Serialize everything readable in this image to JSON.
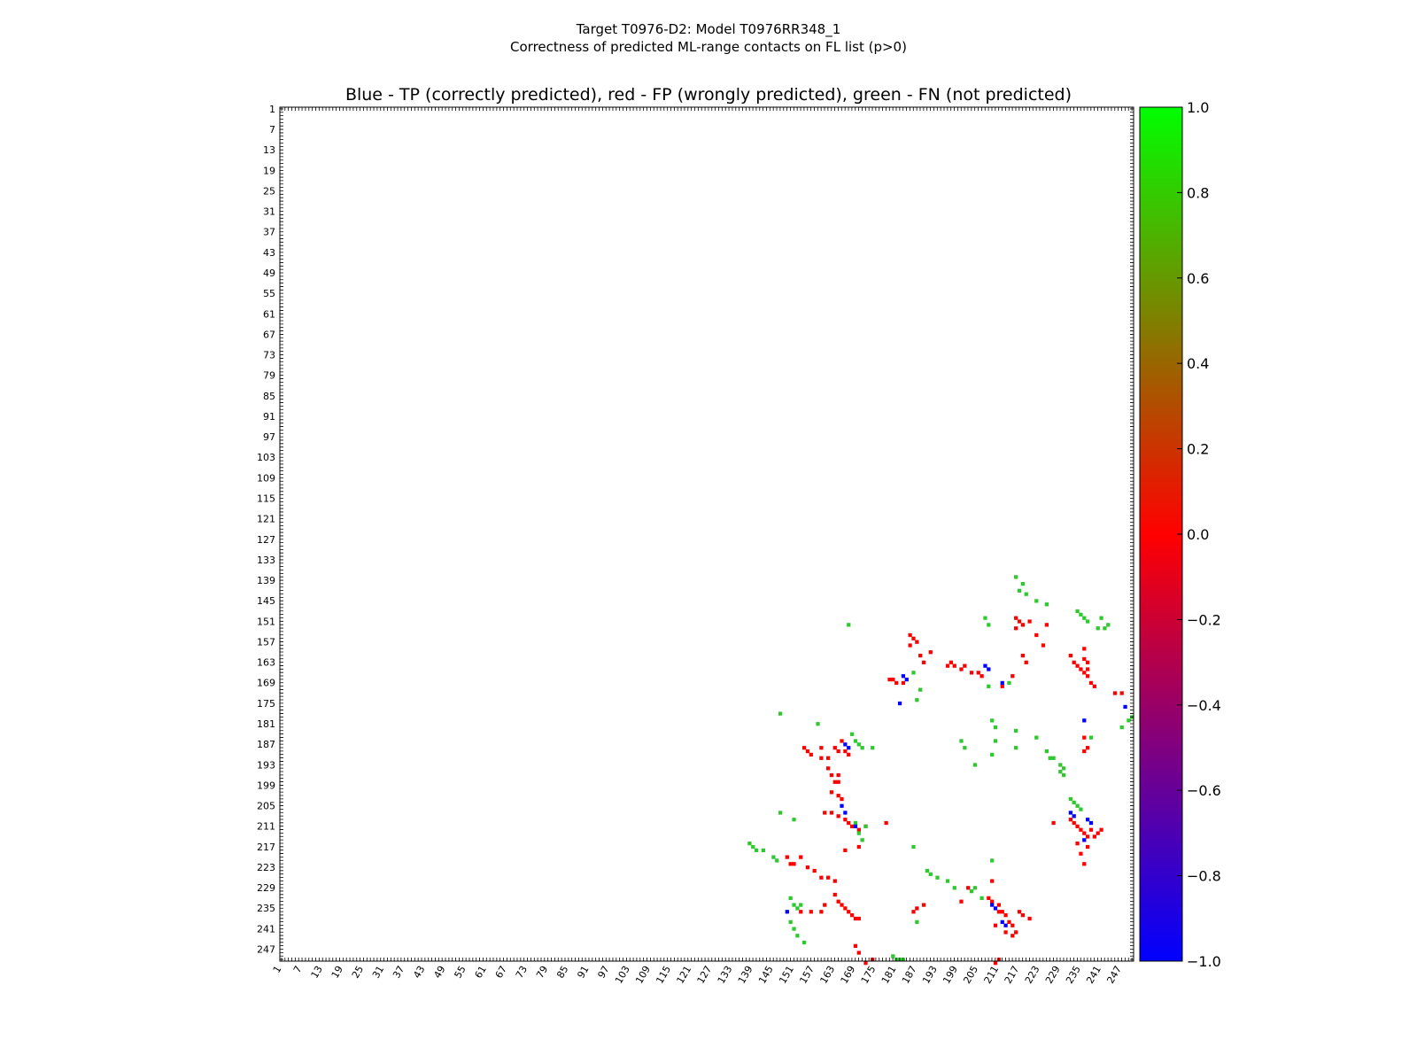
{
  "title_line1": "Target T0976-D2: Model T0976RR348_1",
  "title_line2": "Correctness of predicted ML-range contacts on FL list (p>0)",
  "plot_title": "Blue - TP (correctly predicted), red - FP (wrongly predicted), green - FN (not predicted)",
  "chart_data": {
    "type": "heatmap",
    "matrix_size": 250,
    "xlim": [
      1,
      250
    ],
    "ylim": [
      1,
      250
    ],
    "x_ticks": [
      "1",
      "7",
      "13",
      "19",
      "25",
      "31",
      "37",
      "43",
      "49",
      "55",
      "61",
      "67",
      "73",
      "79",
      "85",
      "91",
      "97",
      "103",
      "109",
      "115",
      "121",
      "127",
      "133",
      "139",
      "145",
      "151",
      "157",
      "163",
      "169",
      "175",
      "181",
      "187",
      "193",
      "199",
      "205",
      "211",
      "217",
      "223",
      "229",
      "235",
      "241",
      "247"
    ],
    "y_ticks": [
      "1",
      "7",
      "13",
      "19",
      "25",
      "31",
      "37",
      "43",
      "49",
      "55",
      "61",
      "67",
      "73",
      "79",
      "85",
      "91",
      "97",
      "103",
      "109",
      "115",
      "121",
      "127",
      "133",
      "139",
      "145",
      "151",
      "157",
      "163",
      "169",
      "175",
      "181",
      "187",
      "193",
      "199",
      "205",
      "211",
      "217",
      "223",
      "229",
      "235",
      "241",
      "247"
    ],
    "colorbar": {
      "min": -1.0,
      "max": 1.0,
      "ticks": [
        "1.0",
        "0.8",
        "0.6",
        "0.4",
        "0.2",
        "0.0",
        "−0.2",
        "−0.4",
        "−0.6",
        "−0.8",
        "−1.0"
      ],
      "colors": [
        "#0000ff",
        "#ff0000",
        "#00ff00"
      ]
    },
    "categories": [
      {
        "label": "TP",
        "value": -1,
        "color": "#0000ff"
      },
      {
        "label": "FP",
        "value": 0,
        "color": "#ff0000"
      },
      {
        "label": "FN",
        "value": 1,
        "color": "#2ec92e"
      }
    ],
    "fp_cells": [
      [
        216,
        150
      ],
      [
        217,
        151
      ],
      [
        218,
        152
      ],
      [
        220,
        151
      ],
      [
        216,
        153
      ],
      [
        222,
        155
      ],
      [
        224,
        158
      ],
      [
        218,
        161
      ],
      [
        219,
        163
      ],
      [
        232,
        161
      ],
      [
        233,
        163
      ],
      [
        234,
        164
      ],
      [
        235,
        165
      ],
      [
        236,
        166
      ],
      [
        237,
        167
      ],
      [
        238,
        169
      ],
      [
        239,
        170
      ],
      [
        236,
        159
      ],
      [
        236,
        162
      ],
      [
        237,
        163
      ],
      [
        237,
        165
      ],
      [
        185,
        155
      ],
      [
        186,
        156
      ],
      [
        187,
        157
      ],
      [
        185,
        158
      ],
      [
        188,
        161
      ],
      [
        189,
        163
      ],
      [
        191,
        160
      ],
      [
        196,
        164
      ],
      [
        197,
        163
      ],
      [
        198,
        164
      ],
      [
        200,
        165
      ],
      [
        201,
        164
      ],
      [
        203,
        166
      ],
      [
        205,
        166
      ],
      [
        206,
        167
      ],
      [
        179,
        168
      ],
      [
        180,
        168
      ],
      [
        181,
        169
      ],
      [
        183,
        169
      ],
      [
        245,
        172
      ],
      [
        247,
        172
      ],
      [
        163,
        188
      ],
      [
        164,
        189
      ],
      [
        166,
        189
      ],
      [
        167,
        190
      ],
      [
        165,
        186
      ],
      [
        159,
        188
      ],
      [
        154,
        188
      ],
      [
        155,
        189
      ],
      [
        156,
        190
      ],
      [
        159,
        191
      ],
      [
        161,
        191
      ],
      [
        161,
        194
      ],
      [
        162,
        196
      ],
      [
        163,
        198
      ],
      [
        164,
        196
      ],
      [
        164,
        198
      ],
      [
        162,
        201
      ],
      [
        164,
        202
      ],
      [
        165,
        203
      ],
      [
        160,
        207
      ],
      [
        162,
        207
      ],
      [
        164,
        208
      ],
      [
        166,
        209
      ],
      [
        167,
        210
      ],
      [
        168,
        211
      ],
      [
        170,
        212
      ],
      [
        149,
        220
      ],
      [
        150,
        222
      ],
      [
        151,
        222
      ],
      [
        153,
        220
      ],
      [
        155,
        223
      ],
      [
        157,
        224
      ],
      [
        159,
        226
      ],
      [
        161,
        226
      ],
      [
        163,
        227
      ],
      [
        163,
        231
      ],
      [
        164,
        233
      ],
      [
        165,
        234
      ],
      [
        166,
        235
      ],
      [
        167,
        236
      ],
      [
        168,
        237
      ],
      [
        169,
        238
      ],
      [
        170,
        238
      ],
      [
        153,
        236
      ],
      [
        156,
        236
      ],
      [
        159,
        236
      ],
      [
        160,
        234
      ],
      [
        208,
        232
      ],
      [
        209,
        233
      ],
      [
        211,
        234
      ],
      [
        212,
        236
      ],
      [
        213,
        237
      ],
      [
        214,
        239
      ],
      [
        215,
        240
      ],
      [
        210,
        240
      ],
      [
        213,
        242
      ],
      [
        215,
        243
      ],
      [
        216,
        242
      ],
      [
        217,
        236
      ],
      [
        218,
        237
      ],
      [
        220,
        238
      ],
      [
        211,
        236
      ],
      [
        232,
        209
      ],
      [
        233,
        210
      ],
      [
        234,
        211
      ],
      [
        235,
        212
      ],
      [
        236,
        213
      ],
      [
        237,
        214
      ],
      [
        238,
        212
      ],
      [
        239,
        214
      ],
      [
        240,
        213
      ],
      [
        241,
        212
      ],
      [
        237,
        217
      ],
      [
        234,
        216
      ],
      [
        235,
        219
      ],
      [
        236,
        222
      ],
      [
        227,
        210
      ],
      [
        236,
        189
      ],
      [
        237,
        188
      ],
      [
        236,
        185
      ],
      [
        186,
        236
      ],
      [
        187,
        235
      ],
      [
        189,
        234
      ],
      [
        172,
        251
      ],
      [
        174,
        250
      ],
      [
        210,
        251
      ],
      [
        211,
        250
      ],
      [
        200,
        233
      ],
      [
        202,
        229
      ],
      [
        209,
        227
      ],
      [
        166,
        218
      ],
      [
        170,
        217
      ],
      [
        172,
        211
      ],
      [
        169,
        246
      ],
      [
        170,
        248
      ],
      [
        178,
        210
      ],
      [
        225,
        152
      ],
      [
        215,
        167
      ],
      [
        212,
        170
      ]
    ],
    "tp_cells": [
      [
        207,
        164
      ],
      [
        208,
        165
      ],
      [
        212,
        169
      ],
      [
        183,
        167
      ],
      [
        184,
        168
      ],
      [
        182,
        175
      ],
      [
        166,
        187
      ],
      [
        167,
        188
      ],
      [
        165,
        205
      ],
      [
        166,
        207
      ],
      [
        169,
        211
      ],
      [
        209,
        234
      ],
      [
        210,
        235
      ],
      [
        212,
        239
      ],
      [
        213,
        240
      ],
      [
        232,
        207
      ],
      [
        233,
        208
      ],
      [
        237,
        209
      ],
      [
        238,
        210
      ],
      [
        236,
        215
      ],
      [
        236,
        180
      ],
      [
        149,
        236
      ],
      [
        248,
        176
      ]
    ],
    "fn_cells": [
      [
        216,
        138
      ],
      [
        218,
        140
      ],
      [
        217,
        142
      ],
      [
        219,
        143
      ],
      [
        222,
        145
      ],
      [
        225,
        146
      ],
      [
        207,
        150
      ],
      [
        208,
        152
      ],
      [
        234,
        148
      ],
      [
        235,
        149
      ],
      [
        236,
        150
      ],
      [
        237,
        151
      ],
      [
        241,
        150
      ],
      [
        243,
        152
      ],
      [
        240,
        153
      ],
      [
        242,
        153
      ],
      [
        167,
        152
      ],
      [
        186,
        166
      ],
      [
        188,
        171
      ],
      [
        214,
        169
      ],
      [
        208,
        170
      ],
      [
        187,
        174
      ],
      [
        209,
        180
      ],
      [
        210,
        182
      ],
      [
        200,
        186
      ],
      [
        201,
        188
      ],
      [
        168,
        184
      ],
      [
        169,
        186
      ],
      [
        170,
        187
      ],
      [
        171,
        188
      ],
      [
        174,
        188
      ],
      [
        147,
        178
      ],
      [
        158,
        181
      ],
      [
        151,
        209
      ],
      [
        147,
        207
      ],
      [
        138,
        216
      ],
      [
        139,
        217
      ],
      [
        140,
        218
      ],
      [
        142,
        218
      ],
      [
        145,
        220
      ],
      [
        146,
        221
      ],
      [
        150,
        232
      ],
      [
        151,
        234
      ],
      [
        152,
        235
      ],
      [
        153,
        234
      ],
      [
        150,
        239
      ],
      [
        151,
        241
      ],
      [
        152,
        243
      ],
      [
        154,
        245
      ],
      [
        180,
        249
      ],
      [
        181,
        250
      ],
      [
        182,
        250
      ],
      [
        183,
        250
      ],
      [
        187,
        239
      ],
      [
        186,
        217
      ],
      [
        190,
        224
      ],
      [
        191,
        225
      ],
      [
        193,
        226
      ],
      [
        196,
        227
      ],
      [
        198,
        229
      ],
      [
        203,
        230
      ],
      [
        204,
        229
      ],
      [
        206,
        232
      ],
      [
        209,
        221
      ],
      [
        222,
        185
      ],
      [
        225,
        189
      ],
      [
        226,
        191
      ],
      [
        227,
        191
      ],
      [
        229,
        193
      ],
      [
        230,
        194
      ],
      [
        229,
        195
      ],
      [
        230,
        196
      ],
      [
        232,
        203
      ],
      [
        233,
        204
      ],
      [
        234,
        205
      ],
      [
        235,
        206
      ],
      [
        238,
        185
      ],
      [
        210,
        186
      ],
      [
        209,
        190
      ],
      [
        204,
        193
      ],
      [
        249,
        180
      ],
      [
        250,
        179
      ],
      [
        247,
        182
      ],
      [
        216,
        183
      ],
      [
        216,
        188
      ],
      [
        169,
        210
      ],
      [
        170,
        213
      ],
      [
        172,
        211
      ],
      [
        171,
        215
      ]
    ]
  }
}
